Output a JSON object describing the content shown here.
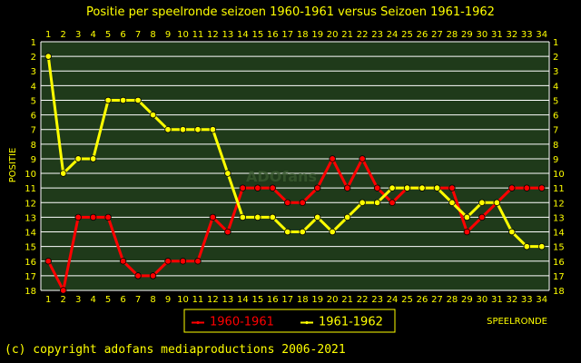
{
  "chart_data": {
    "type": "line",
    "title": "Positie per speelronde seizoen 1960-1961 versus Seizoen 1961-1962",
    "xlabel": "SPEELRONDE",
    "ylabel": "POSITIE",
    "x": [
      1,
      2,
      3,
      4,
      5,
      6,
      7,
      8,
      9,
      10,
      11,
      12,
      13,
      14,
      15,
      16,
      17,
      18,
      19,
      20,
      21,
      22,
      23,
      24,
      25,
      26,
      27,
      28,
      29,
      30,
      31,
      32,
      33,
      34
    ],
    "xlim": [
      1,
      34
    ],
    "ylim": [
      1,
      18
    ],
    "y_inverted": true,
    "y_ticks": [
      1,
      2,
      3,
      4,
      5,
      6,
      7,
      8,
      9,
      10,
      11,
      12,
      13,
      14,
      15,
      16,
      17,
      18
    ],
    "grid": true,
    "legend_position": "bottom-left",
    "series": [
      {
        "name": "1960-1961",
        "color": "#ff0000",
        "values": [
          16,
          18,
          13,
          13,
          13,
          16,
          17,
          17,
          16,
          16,
          16,
          13,
          14,
          11,
          11,
          11,
          12,
          12,
          11,
          9,
          11,
          9,
          11,
          12,
          11,
          11,
          11,
          11,
          14,
          13,
          12,
          11,
          11,
          11
        ]
      },
      {
        "name": "1961-1962",
        "color": "#ffff00",
        "values": [
          2,
          10,
          9,
          9,
          5,
          5,
          5,
          6,
          7,
          7,
          7,
          7,
          10,
          13,
          13,
          13,
          14,
          14,
          13,
          14,
          13,
          12,
          12,
          11,
          11,
          11,
          11,
          12,
          13,
          12,
          12,
          14,
          15,
          15
        ]
      }
    ],
    "watermark": "ADOfans"
  },
  "colors": {
    "background": "#000000",
    "plot_background": "#1f3a1a",
    "grid": "#ffffff",
    "text": "#ffff00",
    "legend_border": "#ffff00"
  },
  "footer": {
    "copyright": "(c) copyright adofans mediaproductions 2006-2021"
  }
}
